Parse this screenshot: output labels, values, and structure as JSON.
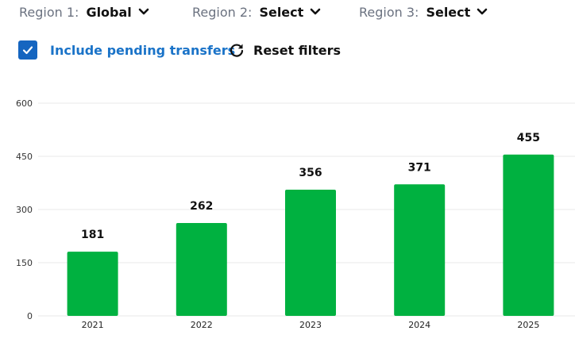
{
  "filters": [
    {
      "label": "Region 1:",
      "value": "Global"
    },
    {
      "label": "Region 2:",
      "value": "Select"
    },
    {
      "label": "Region 3:",
      "value": "Select"
    }
  ],
  "options": {
    "include_pending_label": "Include pending transfers",
    "include_pending_checked": true,
    "reset_label": "Reset filters"
  },
  "colors": {
    "bar": "#00b140",
    "checkbox": "#1565c0",
    "link": "#1a73c8"
  },
  "icons": {
    "dropdown": "chevron-down-icon",
    "reset": "refresh-icon",
    "checkbox": "check-icon"
  },
  "chart_data": {
    "type": "bar",
    "categories": [
      "2021",
      "2022",
      "2023",
      "2024",
      "2025"
    ],
    "values": [
      181,
      262,
      356,
      371,
      455
    ],
    "data_labels": [
      "181",
      "262",
      "356",
      "371",
      "455"
    ],
    "yticks": [
      0,
      150,
      300,
      450,
      600
    ],
    "ylim": [
      0,
      600
    ],
    "grid": true,
    "title": "",
    "xlabel": "",
    "ylabel": ""
  }
}
